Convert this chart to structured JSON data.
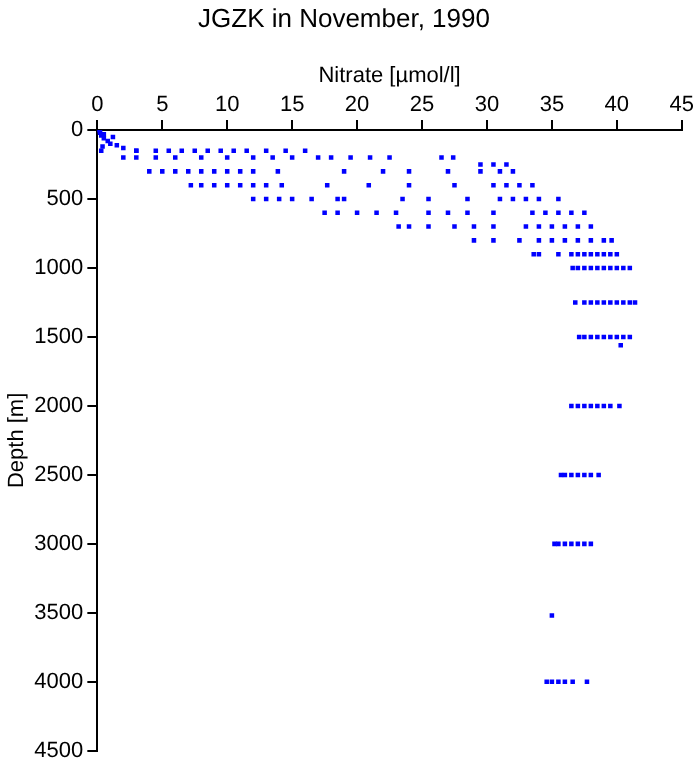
{
  "chart_data": {
    "type": "scatter",
    "title": "JGZK in November, 1990",
    "xlabel": "Nitrate [µmol/l]",
    "ylabel": "Depth [m]",
    "xlim": [
      0,
      45
    ],
    "xticks": [
      0,
      5,
      10,
      15,
      20,
      25,
      30,
      35,
      40,
      45
    ],
    "ylim": [
      4500,
      0
    ],
    "yticks": [
      0,
      500,
      1000,
      1500,
      2000,
      2500,
      3000,
      3500,
      4000,
      4500
    ],
    "grid": false,
    "legend": false,
    "marker": "square",
    "series": [
      {
        "color": "#0000ff",
        "x": [
          0.1,
          0.2,
          0.3,
          0.5,
          0.8,
          1,
          1.5,
          2,
          3,
          0.2,
          0.5,
          1.2,
          0.4,
          0.3,
          3,
          4.5,
          5.5,
          6.5,
          7.5,
          8.5,
          9.5,
          10.5,
          11.5,
          13,
          14.5,
          16,
          2,
          3,
          4.5,
          6,
          8,
          10,
          12,
          13.5,
          15,
          17,
          18,
          19.5,
          21,
          22.5,
          26.5,
          27.4,
          29.5,
          30.5,
          31.5,
          4,
          5,
          6,
          7,
          8,
          9,
          10,
          11,
          12,
          13.9,
          19,
          22,
          24,
          27,
          29.5,
          31,
          32,
          7.2,
          8,
          9,
          10,
          11,
          12,
          13,
          14.2,
          17.7,
          20.9,
          24,
          27.5,
          30.5,
          31.5,
          32.5,
          33.5,
          12,
          13,
          14,
          15,
          16.5,
          18.5,
          19,
          23.5,
          25.5,
          28.5,
          31,
          32,
          33,
          34,
          35.5,
          17.5,
          18.5,
          20,
          21.5,
          23,
          25.5,
          27,
          28.5,
          30.5,
          33.5,
          34.5,
          35.5,
          36.5,
          37.5,
          23.2,
          24,
          25.5,
          27.5,
          29,
          30.5,
          33,
          34,
          35,
          36,
          37,
          38,
          29,
          30.5,
          32.5,
          34,
          35,
          36,
          37,
          38,
          39,
          39.6,
          33.6,
          34,
          35.5,
          36.5,
          37,
          37.5,
          38,
          38.5,
          39,
          39.5,
          40,
          36.6,
          37,
          37.5,
          38,
          38.5,
          39,
          39.5,
          40,
          40.5,
          41,
          36.8,
          37.5,
          38,
          38.5,
          39,
          39.5,
          40,
          40.5,
          41,
          41.4,
          37.1,
          37.5,
          38,
          38.5,
          39,
          39.5,
          40,
          40.5,
          41,
          40.3,
          36.5,
          37,
          37.5,
          38,
          38.5,
          39,
          39.5,
          40.2,
          35.7,
          36,
          36.5,
          37,
          37.5,
          38,
          38.6,
          35.2,
          35.5,
          36,
          36.5,
          37,
          37.5,
          38,
          35,
          34.6,
          35,
          35.5,
          36,
          36.6,
          37.7
        ],
        "values": [
          0,
          20,
          40,
          60,
          80,
          100,
          110,
          130,
          150,
          10,
          30,
          50,
          120,
          150,
          150,
          150,
          150,
          150,
          150,
          150,
          150,
          150,
          150,
          150,
          150,
          150,
          200,
          200,
          200,
          200,
          200,
          200,
          200,
          200,
          200,
          200,
          200,
          200,
          200,
          200,
          200,
          200,
          250,
          250,
          250,
          300,
          300,
          300,
          300,
          300,
          300,
          300,
          300,
          300,
          300,
          300,
          300,
          300,
          300,
          300,
          300,
          300,
          400,
          400,
          400,
          400,
          400,
          400,
          400,
          400,
          400,
          400,
          400,
          400,
          400,
          400,
          400,
          400,
          500,
          500,
          500,
          500,
          500,
          500,
          500,
          500,
          500,
          500,
          500,
          500,
          500,
          500,
          500,
          600,
          600,
          600,
          600,
          600,
          600,
          600,
          600,
          600,
          600,
          600,
          600,
          600,
          600,
          700,
          700,
          700,
          700,
          700,
          700,
          700,
          700,
          700,
          700,
          700,
          700,
          800,
          800,
          800,
          800,
          800,
          800,
          800,
          800,
          800,
          800,
          900,
          900,
          900,
          900,
          900,
          900,
          900,
          900,
          900,
          900,
          900,
          1000,
          1000,
          1000,
          1000,
          1000,
          1000,
          1000,
          1000,
          1000,
          1000,
          1250,
          1250,
          1250,
          1250,
          1250,
          1250,
          1250,
          1250,
          1250,
          1250,
          1500,
          1500,
          1500,
          1500,
          1500,
          1500,
          1500,
          1500,
          1500,
          1560,
          2000,
          2000,
          2000,
          2000,
          2000,
          2000,
          2000,
          2000,
          2500,
          2500,
          2500,
          2500,
          2500,
          2500,
          2500,
          3000,
          3000,
          3000,
          3000,
          3000,
          3000,
          3000,
          3520,
          4000,
          4000,
          4000,
          4000,
          4000,
          4000
        ]
      }
    ]
  }
}
